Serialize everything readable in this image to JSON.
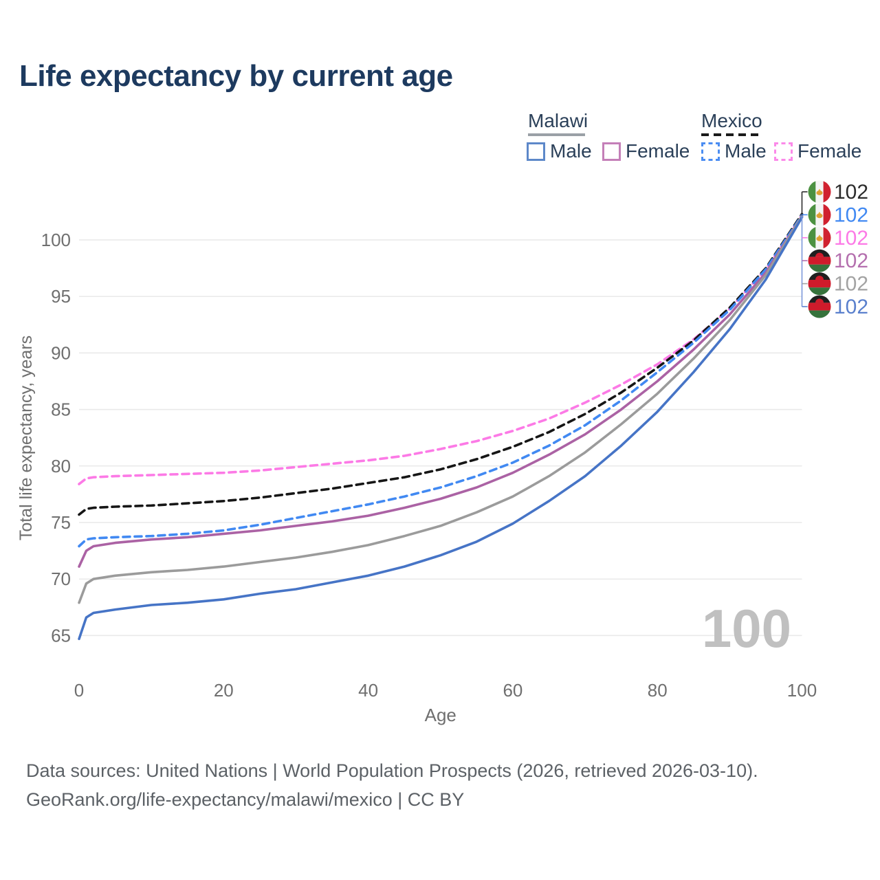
{
  "title": "Life expectancy by current age",
  "legend": {
    "malawi": {
      "name": "Malawi",
      "male_label": "Male",
      "female_label": "Female",
      "underline_color": "#9aa0a6",
      "male_swatch_color": "#5d88c9",
      "female_swatch_color": "#c47fb8"
    },
    "mexico": {
      "name": "Mexico",
      "male_label": "Male",
      "female_label": "Female",
      "underline_color": "#1a1a1a",
      "male_swatch_color": "#4b8df2",
      "female_swatch_color": "#fb8ae9"
    }
  },
  "watermark": "100",
  "footer": {
    "line1": "Data sources: United Nations | World Population Prospects (2026, retrieved 2026-03-10).",
    "line2": "GeoRank.org/life-expectancy/malawi/mexico | CC BY"
  },
  "chart_data": {
    "type": "line",
    "title": "Life expectancy by current age",
    "xlabel": "Age",
    "ylabel": "Total life expectancy, years",
    "xlim": [
      0,
      100
    ],
    "ylim": [
      63,
      103
    ],
    "xticks": [
      0,
      20,
      40,
      60,
      80,
      100
    ],
    "yticks": [
      65,
      70,
      75,
      80,
      85,
      90,
      95,
      100
    ],
    "grid": "horizontal",
    "legend_position": "top-right",
    "x": [
      0,
      1,
      2,
      5,
      10,
      15,
      20,
      25,
      30,
      35,
      40,
      45,
      50,
      55,
      60,
      65,
      70,
      75,
      80,
      85,
      90,
      95,
      100
    ],
    "series": [
      {
        "name": "Mexico Female",
        "country": "Mexico",
        "sex": "Female",
        "color": "#fc7ae6",
        "dash": true,
        "values": [
          78.4,
          78.9,
          79.0,
          79.1,
          79.2,
          79.3,
          79.4,
          79.6,
          79.9,
          80.2,
          80.5,
          80.9,
          81.5,
          82.2,
          83.1,
          84.2,
          85.6,
          87.2,
          89.0,
          91.2,
          93.9,
          97.4,
          102.2
        ]
      },
      {
        "name": "Mexico",
        "country": "Mexico",
        "sex": "All",
        "color": "#161616",
        "dash": true,
        "values": [
          75.7,
          76.2,
          76.3,
          76.4,
          76.5,
          76.7,
          76.9,
          77.2,
          77.6,
          78.0,
          78.5,
          79.0,
          79.7,
          80.6,
          81.7,
          83.0,
          84.6,
          86.5,
          88.7,
          91.1,
          94.0,
          97.5,
          102.3
        ]
      },
      {
        "name": "Mexico Male",
        "country": "Mexico",
        "sex": "Male",
        "color": "#4189f2",
        "dash": true,
        "values": [
          72.9,
          73.5,
          73.6,
          73.7,
          73.8,
          74.0,
          74.3,
          74.8,
          75.4,
          76.0,
          76.6,
          77.3,
          78.1,
          79.1,
          80.3,
          81.8,
          83.6,
          85.8,
          88.3,
          90.9,
          93.8,
          97.4,
          102.2
        ]
      },
      {
        "name": "Malawi Female",
        "country": "Malawi",
        "sex": "Female",
        "color": "#ab62a4",
        "dash": false,
        "values": [
          71.1,
          72.5,
          72.9,
          73.2,
          73.5,
          73.7,
          74.0,
          74.3,
          74.7,
          75.1,
          75.6,
          76.3,
          77.1,
          78.1,
          79.4,
          81.0,
          82.8,
          85.0,
          87.5,
          90.3,
          93.4,
          97.1,
          102.1
        ]
      },
      {
        "name": "Malawi",
        "country": "Malawi",
        "sex": "All",
        "color": "#9b9b9b",
        "dash": false,
        "values": [
          67.9,
          69.6,
          70.0,
          70.3,
          70.6,
          70.8,
          71.1,
          71.5,
          71.9,
          72.4,
          73.0,
          73.8,
          74.7,
          75.9,
          77.3,
          79.1,
          81.2,
          83.7,
          86.4,
          89.5,
          92.9,
          96.9,
          102.1
        ]
      },
      {
        "name": "Malawi Male",
        "country": "Malawi",
        "sex": "Male",
        "color": "#4674c6",
        "dash": false,
        "values": [
          64.7,
          66.6,
          67.0,
          67.3,
          67.7,
          67.9,
          68.2,
          68.7,
          69.1,
          69.7,
          70.3,
          71.1,
          72.1,
          73.3,
          74.9,
          76.9,
          79.1,
          81.8,
          84.8,
          88.3,
          92.1,
          96.5,
          102.0
        ]
      }
    ],
    "end_labels": [
      {
        "country": "Mexico",
        "sex": "All",
        "value": "102",
        "color": "#2c2c2c",
        "flag": "mexico-flag-icon"
      },
      {
        "country": "Mexico",
        "sex": "Male",
        "value": "102",
        "color": "#4189f2",
        "flag": "mexico-flag-icon"
      },
      {
        "country": "Mexico",
        "sex": "Female",
        "value": "102",
        "color": "#fc7ae6",
        "flag": "mexico-flag-icon"
      },
      {
        "country": "Malawi",
        "sex": "Female",
        "value": "102",
        "color": "#b46fae",
        "flag": "malawi-flag-icon"
      },
      {
        "country": "Malawi",
        "sex": "All",
        "value": "102",
        "color": "#a3a3a3",
        "flag": "malawi-flag-icon"
      },
      {
        "country": "Malawi",
        "sex": "Male",
        "value": "102",
        "color": "#5a80cd",
        "flag": "malawi-flag-icon"
      }
    ]
  }
}
